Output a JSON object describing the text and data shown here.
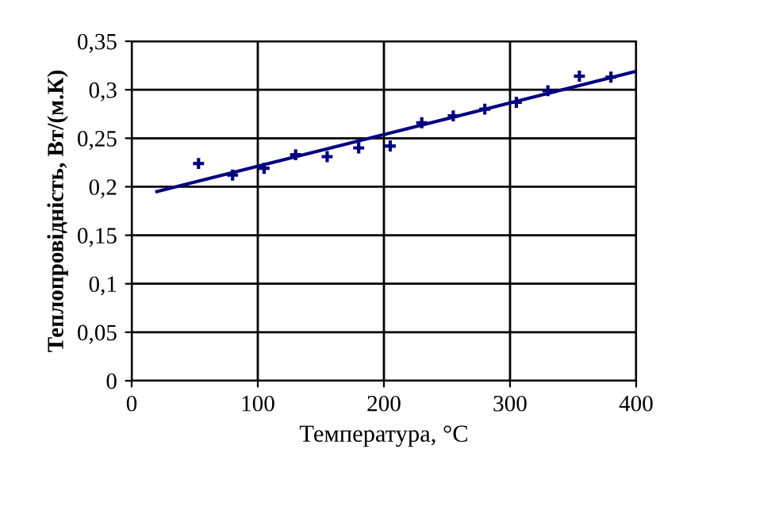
{
  "chart_data": {
    "type": "scatter",
    "xlabel": "Температура, °С",
    "ylabel": "Теплопровідність, Вт/(м.К)",
    "xlim": [
      0,
      400
    ],
    "xticks": [
      0,
      100,
      200,
      300,
      400
    ],
    "ylim": [
      0,
      0.35
    ],
    "yticks": [
      {
        "value": 0,
        "label": "0"
      },
      {
        "value": 0.05,
        "label": "0,05"
      },
      {
        "value": 0.1,
        "label": "0,1"
      },
      {
        "value": 0.15,
        "label": "0,15"
      },
      {
        "value": 0.2,
        "label": "0,2"
      },
      {
        "value": 0.25,
        "label": "0,25"
      },
      {
        "value": 0.3,
        "label": "0,3"
      },
      {
        "value": 0.35,
        "label": "0,35"
      }
    ],
    "grid": true,
    "series": [
      {
        "marker": "cross",
        "color": "#000080",
        "x": [
          53,
          80,
          105,
          130,
          155,
          180,
          205,
          230,
          255,
          280,
          305,
          330,
          355,
          380
        ],
        "values": [
          0.224,
          0.212,
          0.219,
          0.233,
          0.231,
          0.24,
          0.242,
          0.266,
          0.273,
          0.28,
          0.287,
          0.299,
          0.314,
          0.313
        ]
      },
      {
        "type": "line",
        "color": "#000080",
        "x": [
          20,
          400
        ],
        "values": [
          0.195,
          0.319
        ]
      }
    ]
  }
}
